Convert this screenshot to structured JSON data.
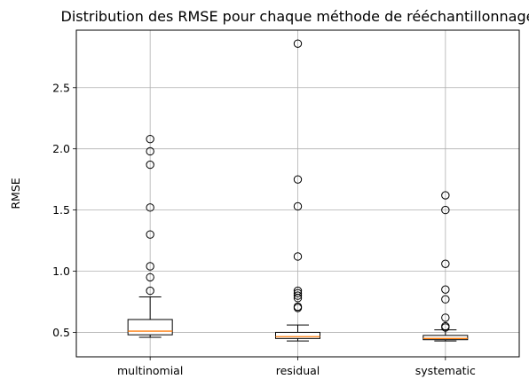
{
  "chart_data": {
    "type": "boxplot",
    "title": "Distribution des RMSE pour chaque méthode de rééchantillonnage",
    "xlabel": "",
    "ylabel": "RMSE",
    "categories": [
      "multinomial",
      "residual",
      "systematic"
    ],
    "ylim": [
      0.3,
      2.97
    ],
    "yticks": [
      0.5,
      1.0,
      1.5,
      2.0,
      2.5
    ],
    "ytick_labels": [
      "0.5",
      "1.0",
      "1.5",
      "2.0",
      "2.5"
    ],
    "grid": true,
    "series": [
      {
        "whisker_low": 0.46,
        "q1": 0.48,
        "median": 0.51,
        "q3": 0.605,
        "whisker_high": 0.79,
        "outliers": [
          0.84,
          0.95,
          1.04,
          1.3,
          1.52,
          1.87,
          1.98,
          2.08
        ]
      },
      {
        "whisker_low": 0.43,
        "q1": 0.45,
        "median": 0.465,
        "q3": 0.5,
        "whisker_high": 0.56,
        "outliers": [
          0.7,
          0.71,
          0.78,
          0.8,
          0.82,
          0.84,
          1.12,
          1.53,
          1.75,
          2.86
        ]
      },
      {
        "whisker_low": 0.43,
        "q1": 0.44,
        "median": 0.45,
        "q3": 0.475,
        "whisker_high": 0.52,
        "outliers": [
          0.54,
          0.55,
          0.62,
          0.77,
          0.85,
          1.06,
          1.5,
          1.62
        ]
      }
    ],
    "colors": {
      "box": "#000000",
      "median": "#ff7f0e",
      "grid": "#b0b0b0",
      "outlier": "#000000"
    }
  }
}
